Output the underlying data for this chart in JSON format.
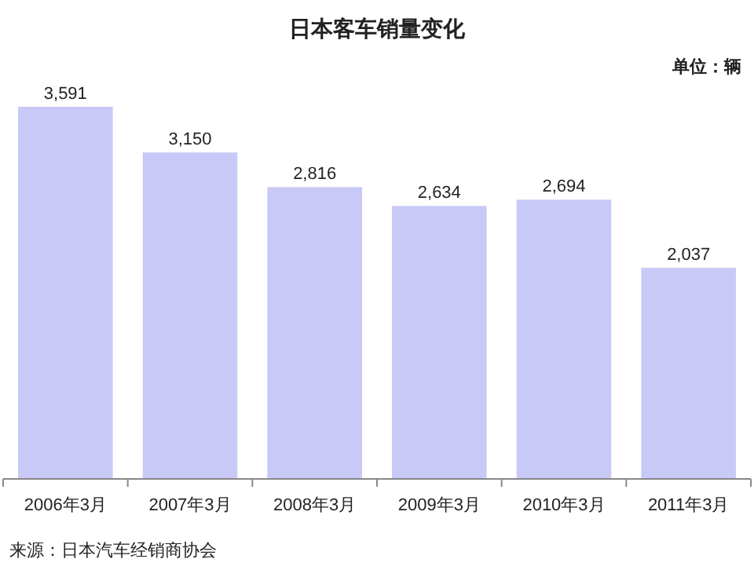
{
  "chart_data": {
    "type": "bar",
    "title": "日本客车销量变化",
    "categories": [
      "2006年3月",
      "2007年3月",
      "2008年3月",
      "2009年3月",
      "2010年3月",
      "2011年3月"
    ],
    "values": [
      3591,
      3150,
      2816,
      2634,
      2694,
      2037
    ],
    "color": "#c9c9f7",
    "value_labels": [
      "3,591",
      "3,150",
      "2,816",
      "2,634",
      "2,694",
      "2,037"
    ],
    "annotations": [
      "单位：辆",
      "来源：日本汽车经销商协会"
    ]
  }
}
